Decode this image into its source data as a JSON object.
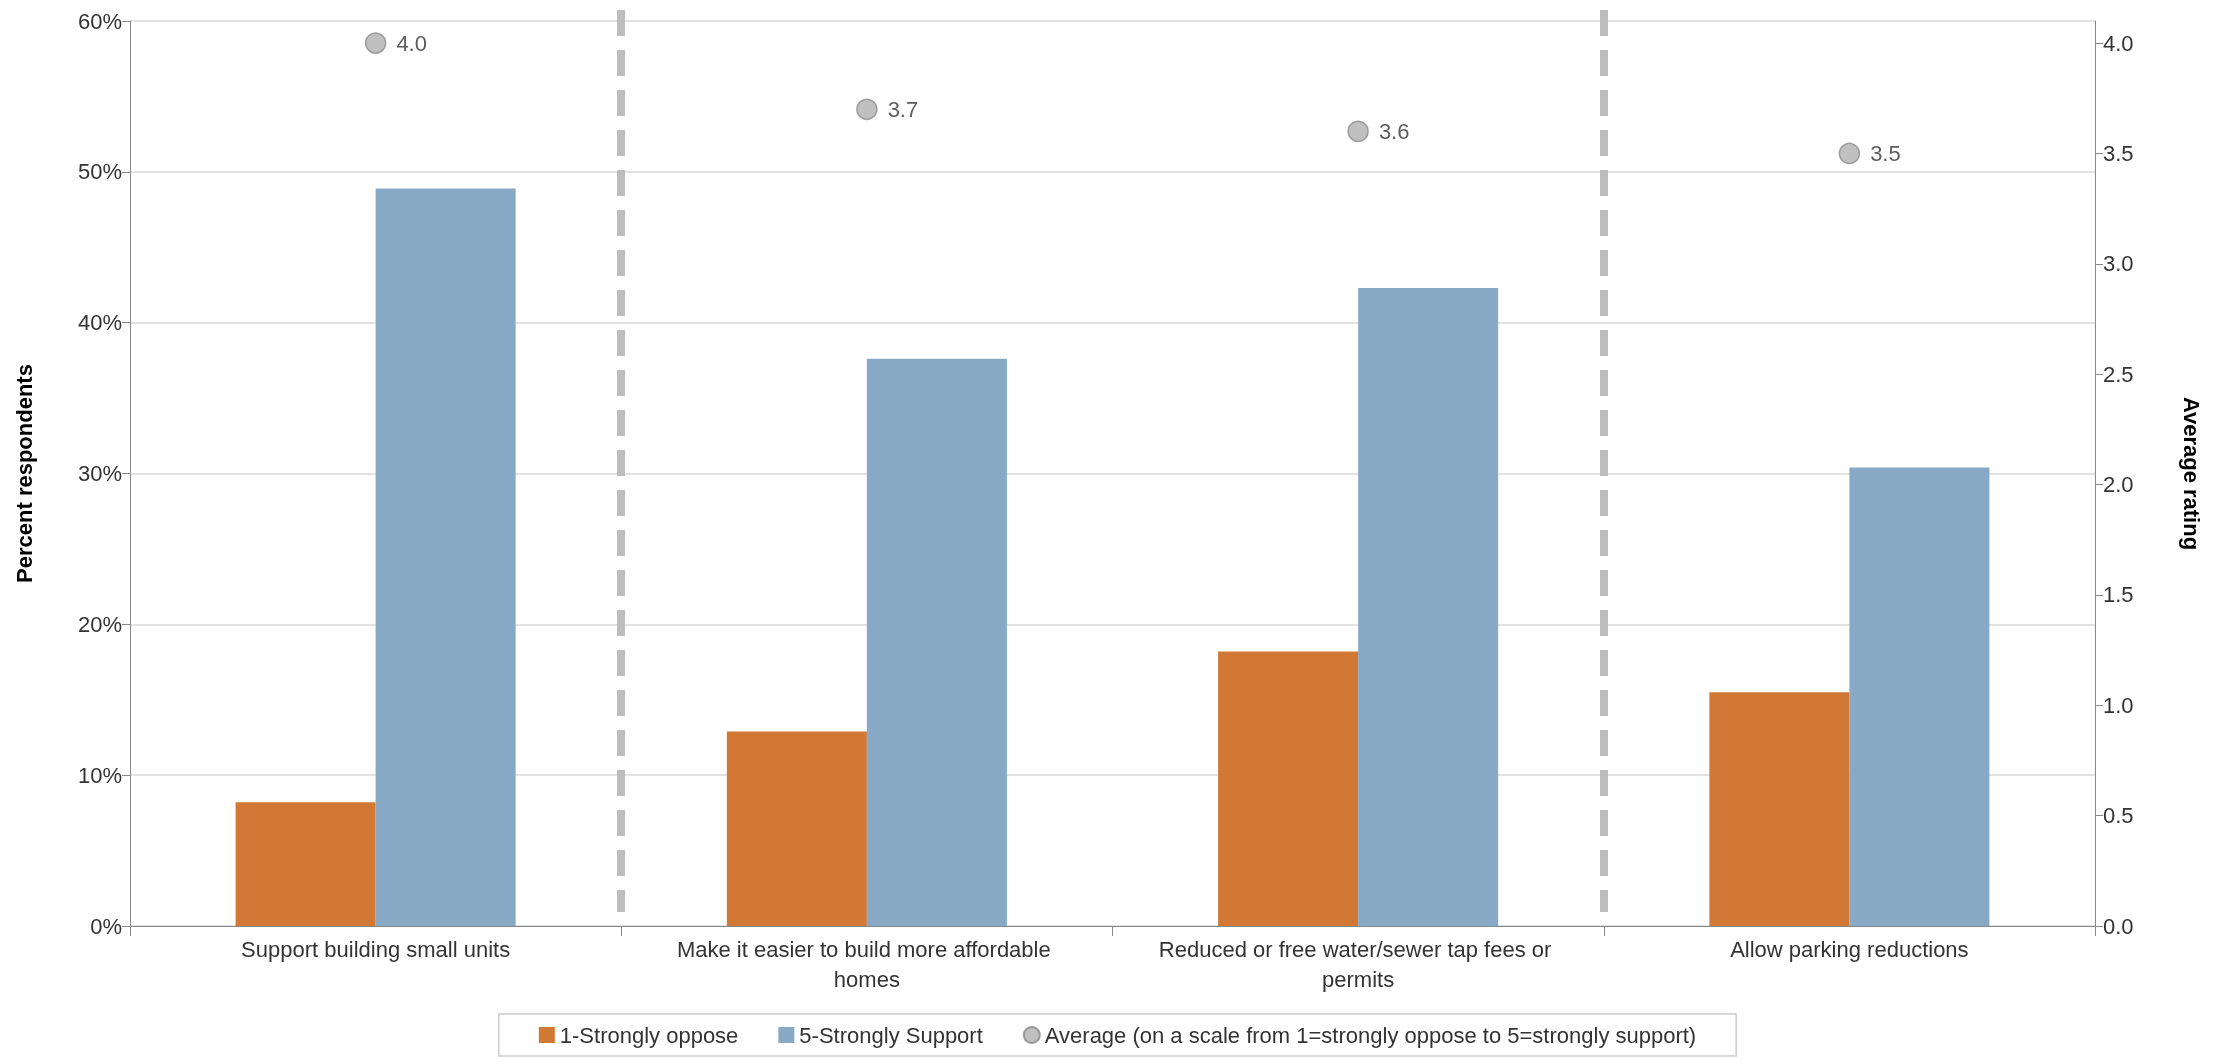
{
  "chart_data": {
    "type": "bar",
    "categories": [
      "Support building small units",
      "Make it easier to build more affordable homes",
      "Reduced or free water/sewer tap fees or permits",
      "Allow parking reductions"
    ],
    "series": [
      {
        "name": "1-Strongly oppose",
        "color": "#d07834",
        "values": [
          8.2,
          12.9,
          18.2,
          15.5
        ]
      },
      {
        "name": "5-Strongly Support",
        "color": "#87a9c6",
        "values": [
          48.9,
          37.6,
          42.3,
          30.4
        ]
      },
      {
        "name": "Average (on a scale from 1=strongly oppose to 5=strongly support)",
        "type": "scatter",
        "axis": "y2",
        "color": "#b0b0b0",
        "marker": "circle",
        "values": [
          4.0,
          3.7,
          3.6,
          3.5
        ],
        "value_labels": [
          "4.0",
          "3.7",
          "3.6",
          "3.5"
        ]
      }
    ],
    "ylabel": "Percent respondents",
    "y2label": "Average rating",
    "ylim": [
      0,
      60
    ],
    "yticks": [
      {
        "value": 0,
        "label": "0%"
      },
      {
        "value": 10,
        "label": "10%"
      },
      {
        "value": 20,
        "label": "20%"
      },
      {
        "value": 30,
        "label": "30%"
      },
      {
        "value": 40,
        "label": "40%"
      },
      {
        "value": 50,
        "label": "50%"
      },
      {
        "value": 60,
        "label": "60%"
      }
    ],
    "y2lim": [
      0,
      4.1
    ],
    "y2ticks": [
      {
        "value": 0,
        "label": "0.0"
      },
      {
        "value": 0.5,
        "label": "0.5"
      },
      {
        "value": 1,
        "label": "1.0"
      },
      {
        "value": 1.5,
        "label": "1.5"
      },
      {
        "value": 2,
        "label": "2.0"
      },
      {
        "value": 2.5,
        "label": "2.5"
      },
      {
        "value": 3,
        "label": "3.0"
      },
      {
        "value": 3.5,
        "label": "3.5"
      },
      {
        "value": 4,
        "label": "4.0"
      }
    ],
    "grid": "y",
    "legend": "bottom"
  }
}
